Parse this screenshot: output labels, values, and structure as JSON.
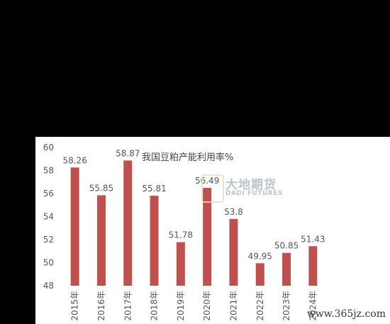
{
  "chart_data": {
    "type": "bar",
    "title": "我国豆粕产能利用率%",
    "categories": [
      "2015年",
      "2016年",
      "2017年",
      "2018年",
      "2019年",
      "2020年",
      "2021年",
      "2022年",
      "2023年",
      "2024年"
    ],
    "values": [
      58.26,
      55.85,
      58.87,
      55.81,
      51.78,
      56.49,
      53.8,
      49.95,
      50.85,
      51.43
    ],
    "value_labels": [
      "58.26",
      "55.85",
      "58.87",
      "55.81",
      "51.78",
      "56.49",
      "53.8",
      "49.95",
      "50.85",
      "51.43"
    ],
    "ylim": [
      48,
      60
    ],
    "yticks": [
      "48",
      "50",
      "52",
      "54",
      "56",
      "58",
      "60"
    ],
    "grid": false,
    "bar_color": "#c0504d"
  },
  "watermark": {
    "brand": "大地期货",
    "brand_en": "DADI FUTURES",
    "site": "www.365jz.com"
  }
}
